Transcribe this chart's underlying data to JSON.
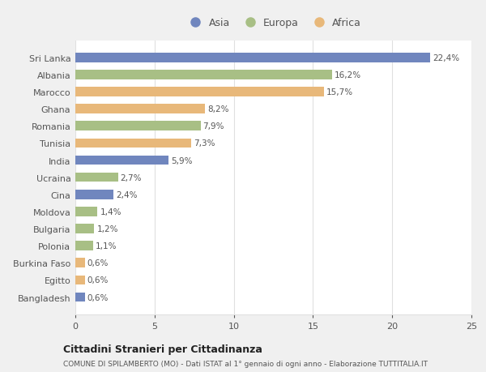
{
  "countries": [
    "Sri Lanka",
    "Albania",
    "Marocco",
    "Ghana",
    "Romania",
    "Tunisia",
    "India",
    "Ucraina",
    "Cina",
    "Moldova",
    "Bulgaria",
    "Polonia",
    "Burkina Faso",
    "Egitto",
    "Bangladesh"
  ],
  "values": [
    22.4,
    16.2,
    15.7,
    8.2,
    7.9,
    7.3,
    5.9,
    2.7,
    2.4,
    1.4,
    1.2,
    1.1,
    0.6,
    0.6,
    0.6
  ],
  "labels": [
    "22,4%",
    "16,2%",
    "15,7%",
    "8,2%",
    "7,9%",
    "7,3%",
    "5,9%",
    "2,7%",
    "2,4%",
    "1,4%",
    "1,2%",
    "1,1%",
    "0,6%",
    "0,6%",
    "0,6%"
  ],
  "continents": [
    "Asia",
    "Europa",
    "Africa",
    "Africa",
    "Europa",
    "Africa",
    "Asia",
    "Europa",
    "Asia",
    "Europa",
    "Europa",
    "Europa",
    "Africa",
    "Africa",
    "Asia"
  ],
  "colors": {
    "Asia": "#7086be",
    "Europa": "#a8bf85",
    "Africa": "#e8b87a"
  },
  "legend_labels": [
    "Asia",
    "Europa",
    "Africa"
  ],
  "title": "Cittadini Stranieri per Cittadinanza",
  "subtitle": "COMUNE DI SPILAMBERTO (MO) - Dati ISTAT al 1° gennaio di ogni anno - Elaborazione TUTTITALIA.IT",
  "xlim": [
    0,
    25
  ],
  "xticks": [
    0,
    5,
    10,
    15,
    20,
    25
  ],
  "background_color": "#f0f0f0",
  "bar_background": "#ffffff",
  "grid_color": "#e0e0e0",
  "text_color": "#555555",
  "title_color": "#222222"
}
